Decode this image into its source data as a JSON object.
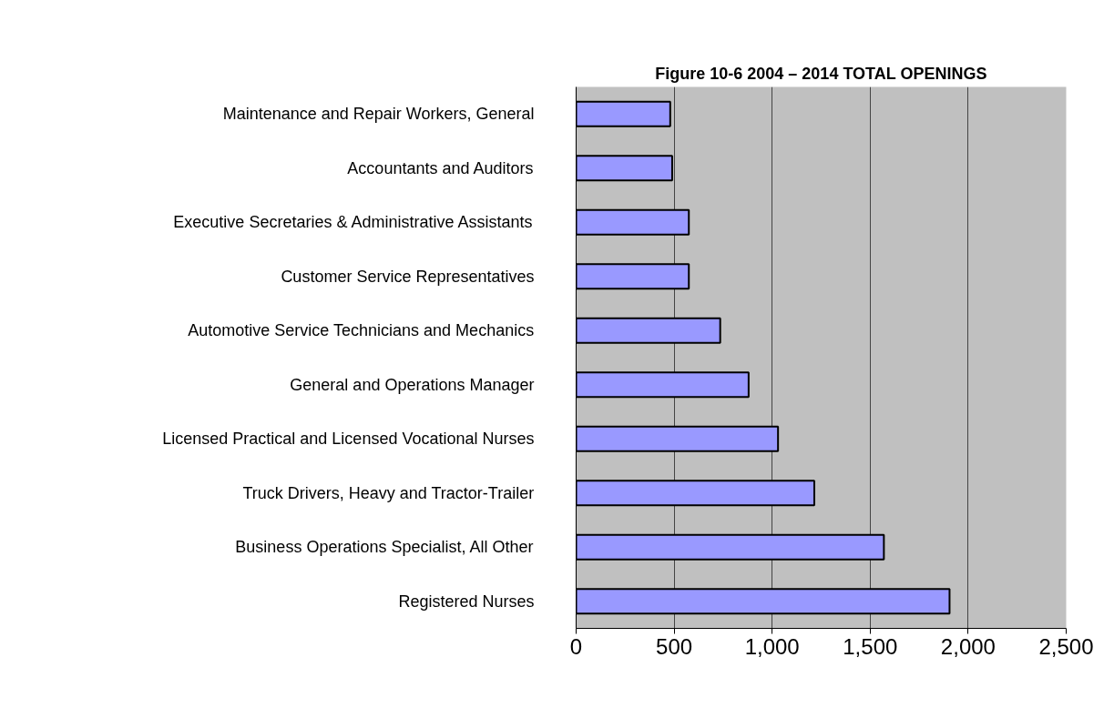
{
  "chart_data": {
    "type": "bar",
    "orientation": "horizontal",
    "title": "Figure 10-6 2004 – 2014 TOTAL OPENINGS",
    "categories": [
      "Maintenance and Repair Workers, General",
      "Accountants and Auditors",
      "Executive Secretaries & Administrative Assistants",
      "Customer Service Representatives",
      "Automotive Service Technicians and Mechanics",
      "General and Operations Manager",
      "Licensed Practical and Licensed Vocational Nurses",
      "Truck Drivers, Heavy and Tractor-Trailer",
      "Business Operations Specialist, All Other",
      "Registered Nurses"
    ],
    "values": [
      480,
      490,
      575,
      575,
      735,
      880,
      1030,
      1215,
      1570,
      1905
    ],
    "color": "#9999ff",
    "xlim": [
      0,
      2500
    ],
    "xticks": [
      {
        "value": 0,
        "label": "0"
      },
      {
        "value": 500,
        "label": "500"
      },
      {
        "value": 1000,
        "label": "1,000"
      },
      {
        "value": 1500,
        "label": "1,500"
      },
      {
        "value": 2000,
        "label": "2,000"
      },
      {
        "value": 2500,
        "label": "2,500"
      }
    ],
    "grid": "x"
  }
}
